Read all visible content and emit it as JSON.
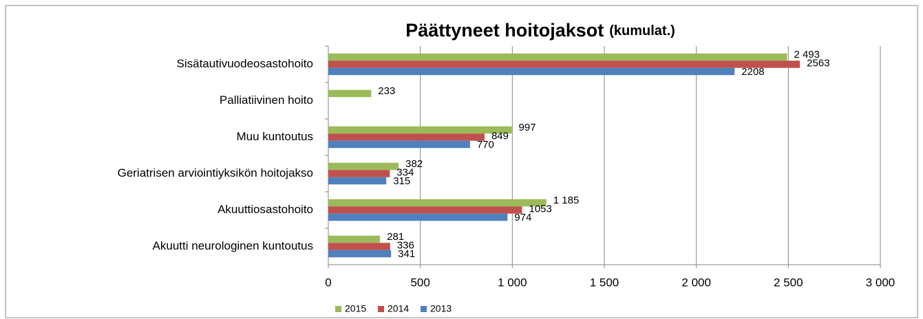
{
  "chart_data": {
    "type": "bar",
    "orientation": "horizontal",
    "title": "Päättyneet hoitojaksot",
    "subtitle": "(kumulat.)",
    "categories": [
      "Sisätautivuodeosastohoito",
      "Palliatiivinen hoito",
      "Muu kuntoutus",
      "Geriatrisen arviointiyksikön hoitojakso",
      "Akuuttiosastohoito",
      "Akuutti neurologinen kuntoutus"
    ],
    "series": [
      {
        "name": "2015",
        "color": "#9bbb59",
        "values": [
          2493,
          233,
          997,
          382,
          1185,
          281
        ],
        "value_labels": [
          "2 493",
          "233",
          "997",
          "382",
          "1 185",
          "281"
        ]
      },
      {
        "name": "2014",
        "color": "#c0504d",
        "values": [
          2563,
          null,
          849,
          334,
          1053,
          336
        ]
      },
      {
        "name": "2013",
        "color": "#4f81bd",
        "values": [
          2208,
          null,
          770,
          315,
          974,
          341
        ]
      }
    ],
    "xlim": [
      0,
      3000
    ],
    "xticks": [
      0,
      500,
      {
        "value": 1000,
        "label": "1 000"
      },
      {
        "value": 1500,
        "label": "1 500"
      },
      {
        "value": 2000,
        "label": "2 000"
      },
      {
        "value": 2500,
        "label": "2 500"
      },
      {
        "value": 3000,
        "label": "3 000"
      }
    ],
    "grid": true,
    "legend": "bottom"
  }
}
